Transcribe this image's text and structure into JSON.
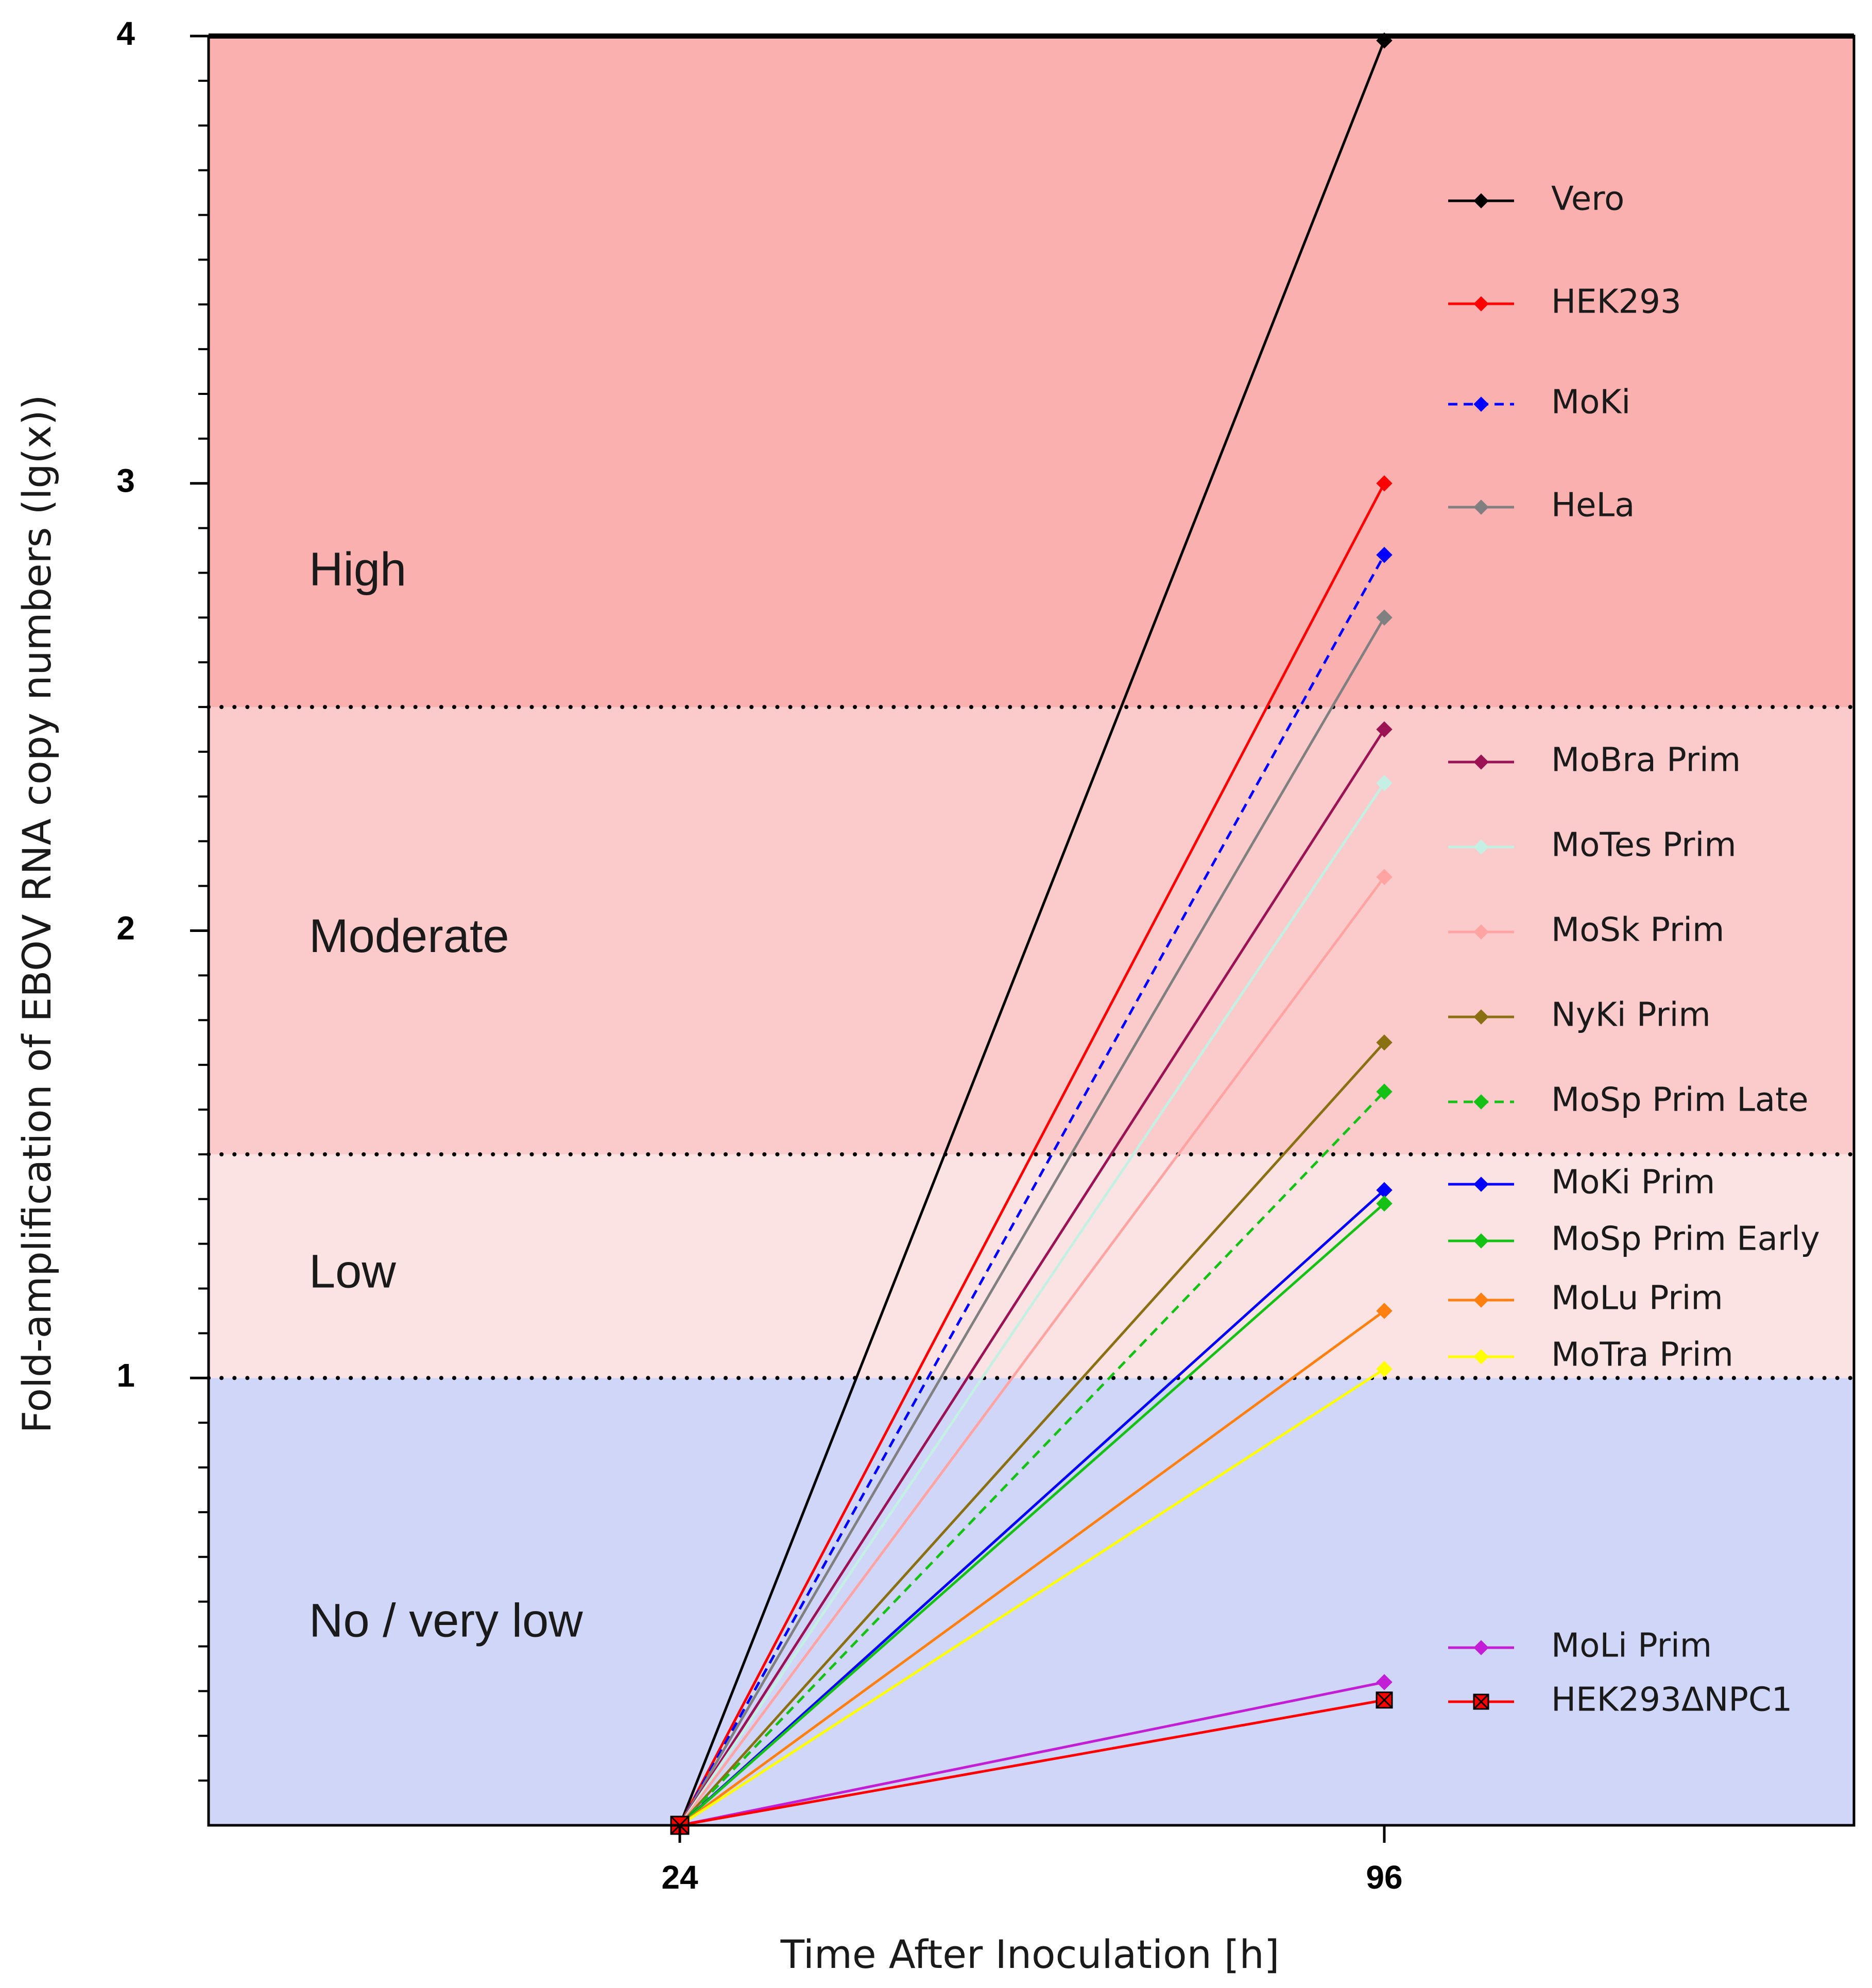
{
  "chart_data": {
    "type": "line",
    "title": "",
    "xlabel": "Time After Inoculation [h]",
    "ylabel": "Fold-amplification of EBOV RNA copy numbers (lg(x))",
    "x": [
      24,
      96
    ],
    "x_tick_labels": [
      "24",
      "96"
    ],
    "ylim": [
      0,
      4
    ],
    "y_major_ticks": [
      1,
      2,
      3,
      4
    ],
    "y_tick_labels": [
      "1",
      "2",
      "3",
      "4"
    ],
    "grid": false,
    "legend_position": "right",
    "bands": [
      {
        "name": "No / very low",
        "from": 0,
        "to": 1,
        "color": "#d0d6f8"
      },
      {
        "name": "Low",
        "from": 1,
        "to": 1.5,
        "color": "#fce3e3"
      },
      {
        "name": "Moderate",
        "from": 1.5,
        "to": 2.5,
        "color": "#fbcbcb"
      },
      {
        "name": "High",
        "from": 2.5,
        "to": 4,
        "color": "#fbb0b0"
      }
    ],
    "thresholds": [
      1,
      1.5,
      2.5
    ],
    "series": [
      {
        "name": "Vero",
        "values": [
          0,
          3.99
        ],
        "color": "#000000",
        "dashed": false,
        "marker": "diamond"
      },
      {
        "name": "HEK293",
        "values": [
          0,
          3.0
        ],
        "color": "#ff0000",
        "dashed": false,
        "marker": "diamond"
      },
      {
        "name": "MoKi",
        "values": [
          0,
          2.84
        ],
        "color": "#0000ff",
        "dashed": true,
        "marker": "diamond"
      },
      {
        "name": "HeLa",
        "values": [
          0,
          2.7
        ],
        "color": "#808080",
        "dashed": false,
        "marker": "diamond"
      },
      {
        "name": "MoBra Prim",
        "values": [
          0,
          2.45
        ],
        "color": "#9b1355",
        "dashed": false,
        "marker": "diamond"
      },
      {
        "name": "MoTes Prim",
        "values": [
          0,
          2.33
        ],
        "color": "#c4f0e4",
        "dashed": false,
        "marker": "diamond"
      },
      {
        "name": "MoSk Prim",
        "values": [
          0,
          2.12
        ],
        "color": "#ffa3a3",
        "dashed": false,
        "marker": "diamond"
      },
      {
        "name": "NyKi Prim",
        "values": [
          0,
          1.75
        ],
        "color": "#8a7012",
        "dashed": false,
        "marker": "diamond"
      },
      {
        "name": "MoSp Prim Late",
        "values": [
          0,
          1.64
        ],
        "color": "#16c116",
        "dashed": true,
        "marker": "diamond"
      },
      {
        "name": "MoKi Prim",
        "values": [
          0,
          1.42
        ],
        "color": "#0000ff",
        "dashed": false,
        "marker": "diamond"
      },
      {
        "name": "MoSp Prim Early",
        "values": [
          0,
          1.39
        ],
        "color": "#16c116",
        "dashed": false,
        "marker": "diamond"
      },
      {
        "name": "MoLu Prim",
        "values": [
          0,
          1.15
        ],
        "color": "#ff8010",
        "dashed": false,
        "marker": "diamond"
      },
      {
        "name": "MoTra Prim",
        "values": [
          0,
          1.02
        ],
        "color": "#ffff00",
        "dashed": false,
        "marker": "diamond"
      },
      {
        "name": "MoLi Prim",
        "values": [
          0,
          0.32
        ],
        "color": "#c21ed6",
        "dashed": false,
        "marker": "diamond"
      },
      {
        "name": "HEK293ΔNPC1",
        "values": [
          0,
          0.28
        ],
        "color": "#ff0000",
        "dashed": false,
        "marker": "square-x"
      }
    ]
  }
}
